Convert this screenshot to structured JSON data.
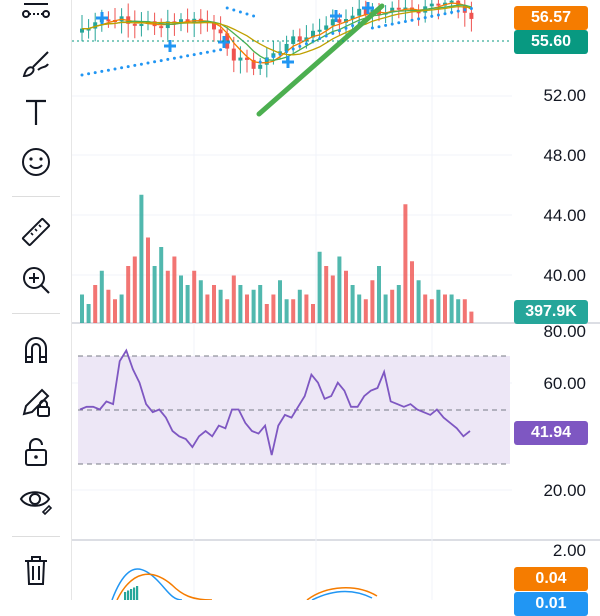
{
  "toolbar": {
    "tools": [
      {
        "name": "trend-tools-icon"
      },
      {
        "name": "brush-icon"
      },
      {
        "name": "text-icon"
      },
      {
        "name": "emoji-icon"
      },
      {
        "name": "ruler-icon"
      },
      {
        "name": "zoom-in-icon"
      },
      {
        "name": "magnet-icon"
      },
      {
        "name": "lock-drawings-icon"
      },
      {
        "name": "unlock-icon"
      },
      {
        "name": "eye-icon"
      },
      {
        "name": "trash-icon"
      }
    ]
  },
  "price_axis": {
    "labels": [
      "52.00",
      "48.00",
      "44.00",
      "40.00"
    ],
    "last_price_tag": "56.57",
    "current_price_tag": "55.60"
  },
  "volume": {
    "tag": "397.9K"
  },
  "rsi": {
    "axis_labels": [
      "80.00",
      "60.00",
      "20.00"
    ],
    "value_tag": "41.94",
    "upper_band": 70,
    "lower_band": 30,
    "values": [
      50,
      51,
      51,
      50,
      53,
      52,
      68,
      72,
      65,
      60,
      52,
      49,
      50,
      47,
      42,
      40,
      39,
      36,
      40,
      42,
      40,
      44,
      43,
      50,
      50,
      45,
      42,
      41,
      44,
      33,
      44,
      48,
      47,
      51,
      55,
      63,
      60,
      54,
      55,
      60,
      57,
      51,
      51,
      55,
      57,
      58,
      64,
      53,
      52,
      51,
      52,
      50,
      49,
      48,
      50,
      47,
      45,
      43,
      40,
      42
    ]
  },
  "macd": {
    "axis_label": "2.00",
    "tag_orange": "0.04",
    "tag_blue": "0.01"
  },
  "colors": {
    "up": "#26a69a",
    "down": "#ef5350",
    "orange_tag": "#f57c00",
    "green_tag": "#089981",
    "rsi_tag": "#7e57c2",
    "rsi_line": "#7e57c2",
    "rsi_band": "#ede7f6",
    "trendline": "#4caf50",
    "sar": "#2196f3"
  }
}
